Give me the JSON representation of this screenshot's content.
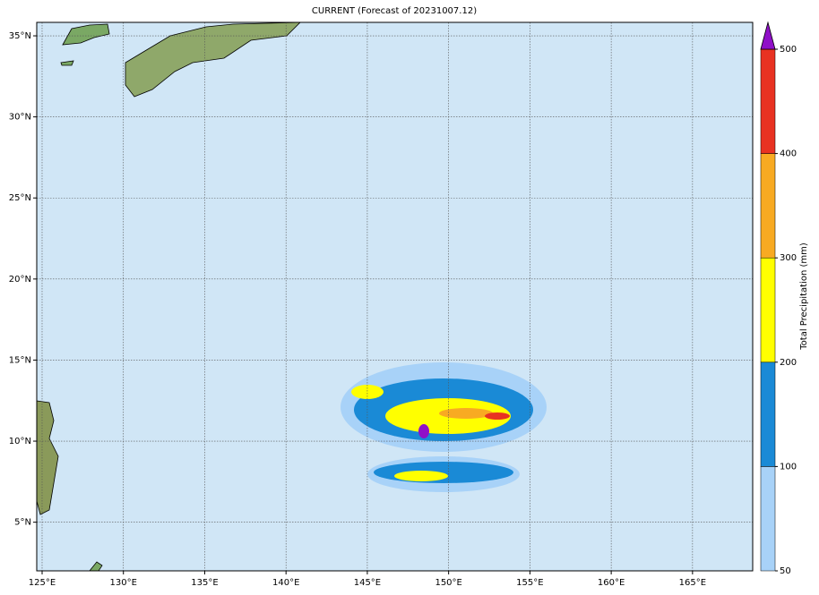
{
  "map": {
    "title": "CURRENT (Forecast of 20231007.12)",
    "lonlim": [
      124.67,
      168.7
    ],
    "latlim": [
      2.0,
      35.83
    ],
    "lon_ticks": [
      {
        "value": 125,
        "label": "125°E"
      },
      {
        "value": 130,
        "label": "130°E"
      },
      {
        "value": 135,
        "label": "135°E"
      },
      {
        "value": 140,
        "label": "140°E"
      },
      {
        "value": 145,
        "label": "145°E"
      },
      {
        "value": 150,
        "label": "150°E"
      },
      {
        "value": 155,
        "label": "155°E"
      },
      {
        "value": 160,
        "label": "160°E"
      },
      {
        "value": 165,
        "label": "165°E"
      }
    ],
    "lat_ticks": [
      {
        "value": 5,
        "label": "5°N"
      },
      {
        "value": 10,
        "label": "10°N"
      },
      {
        "value": 15,
        "label": "15°N"
      },
      {
        "value": 20,
        "label": "20°N"
      },
      {
        "value": 25,
        "label": "25°N"
      },
      {
        "value": 30,
        "label": "30°N"
      },
      {
        "value": 35,
        "label": "35°N"
      }
    ],
    "grid": true,
    "colorbar": {
      "label": "Total Precipitation (mm)",
      "levels": [
        50,
        100,
        200,
        300,
        400,
        500
      ],
      "colors": [
        "#a8d2f8",
        "#1a8ad6",
        "#ffff00",
        "#f8aa22",
        "#e83222"
      ],
      "extend_color": "#9010c8"
    }
  }
}
